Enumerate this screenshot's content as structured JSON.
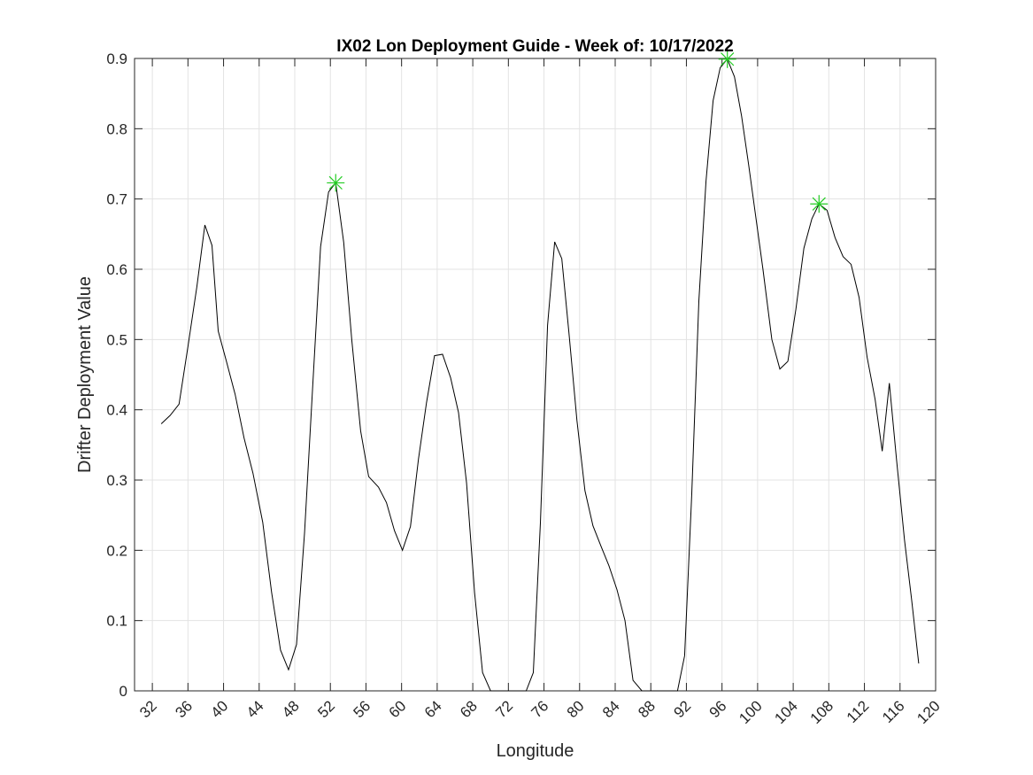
{
  "chart_data": {
    "type": "line",
    "title": "IX02 Lon Deployment Guide - Week of: 10/17/2022",
    "xlabel": "Longitude",
    "ylabel": "Drifter Deployment Value",
    "xlim": [
      30,
      120
    ],
    "ylim": [
      0,
      0.9
    ],
    "grid": true,
    "xticks": [
      32,
      36,
      40,
      44,
      48,
      52,
      56,
      60,
      64,
      68,
      72,
      76,
      80,
      84,
      88,
      92,
      96,
      100,
      104,
      108,
      112,
      116,
      120
    ],
    "yticks": [
      "0",
      "0.1",
      "0.2",
      "0.3",
      "0.4",
      "0.5",
      "0.6",
      "0.7",
      "0.8",
      "0.9"
    ],
    "series": [
      {
        "color": "#000000",
        "points": [
          [
            33.0,
            0.38
          ],
          [
            34.0,
            0.392
          ],
          [
            35.0,
            0.408
          ],
          [
            36.0,
            0.49
          ],
          [
            37.0,
            0.575
          ],
          [
            37.9,
            0.663
          ],
          [
            38.7,
            0.634
          ],
          [
            39.4,
            0.512
          ],
          [
            40.3,
            0.47
          ],
          [
            41.3,
            0.422
          ],
          [
            42.3,
            0.36
          ],
          [
            43.3,
            0.31
          ],
          [
            44.4,
            0.24
          ],
          [
            45.4,
            0.14
          ],
          [
            46.4,
            0.058
          ],
          [
            47.3,
            0.03
          ],
          [
            48.2,
            0.066
          ],
          [
            49.1,
            0.225
          ],
          [
            50.0,
            0.43
          ],
          [
            50.9,
            0.632
          ],
          [
            51.8,
            0.71
          ],
          [
            52.6,
            0.723
          ],
          [
            53.5,
            0.638
          ],
          [
            54.4,
            0.5
          ],
          [
            55.4,
            0.37
          ],
          [
            56.3,
            0.305
          ],
          [
            57.4,
            0.29
          ],
          [
            58.3,
            0.268
          ],
          [
            59.2,
            0.228
          ],
          [
            60.1,
            0.2
          ],
          [
            61.0,
            0.234
          ],
          [
            61.9,
            0.33
          ],
          [
            62.8,
            0.41
          ],
          [
            63.7,
            0.477
          ],
          [
            64.6,
            0.479
          ],
          [
            65.5,
            0.446
          ],
          [
            66.4,
            0.396
          ],
          [
            67.3,
            0.296
          ],
          [
            68.2,
            0.14
          ],
          [
            69.1,
            0.026
          ],
          [
            70.0,
            0.0
          ],
          [
            71.0,
            0.0
          ],
          [
            72.0,
            0.0
          ],
          [
            73.0,
            0.0
          ],
          [
            74.0,
            0.0
          ],
          [
            74.8,
            0.026
          ],
          [
            75.6,
            0.24
          ],
          [
            76.4,
            0.52
          ],
          [
            77.2,
            0.639
          ],
          [
            78.0,
            0.615
          ],
          [
            78.8,
            0.51
          ],
          [
            79.7,
            0.385
          ],
          [
            80.6,
            0.285
          ],
          [
            81.5,
            0.235
          ],
          [
            82.4,
            0.206
          ],
          [
            83.3,
            0.178
          ],
          [
            84.2,
            0.144
          ],
          [
            85.1,
            0.1
          ],
          [
            86.0,
            0.015
          ],
          [
            87.0,
            0.0
          ],
          [
            88.0,
            0.0
          ],
          [
            89.0,
            0.0
          ],
          [
            90.0,
            0.0
          ],
          [
            91.0,
            0.0
          ],
          [
            91.8,
            0.05
          ],
          [
            92.6,
            0.28
          ],
          [
            93.4,
            0.555
          ],
          [
            94.2,
            0.725
          ],
          [
            95.0,
            0.84
          ],
          [
            95.8,
            0.887
          ],
          [
            96.6,
            0.899
          ],
          [
            97.4,
            0.874
          ],
          [
            98.2,
            0.818
          ],
          [
            99.0,
            0.748
          ],
          [
            99.8,
            0.674
          ],
          [
            100.6,
            0.6
          ],
          [
            101.6,
            0.5
          ],
          [
            102.5,
            0.458
          ],
          [
            103.4,
            0.469
          ],
          [
            104.3,
            0.543
          ],
          [
            105.2,
            0.63
          ],
          [
            106.1,
            0.672
          ],
          [
            106.9,
            0.693
          ],
          [
            107.8,
            0.684
          ],
          [
            108.7,
            0.645
          ],
          [
            109.6,
            0.618
          ],
          [
            110.5,
            0.607
          ],
          [
            111.4,
            0.56
          ],
          [
            112.3,
            0.475
          ],
          [
            113.2,
            0.415
          ],
          [
            114.0,
            0.341
          ],
          [
            114.8,
            0.438
          ],
          [
            115.6,
            0.33
          ],
          [
            116.5,
            0.215
          ],
          [
            117.3,
            0.13
          ],
          [
            118.1,
            0.039
          ]
        ]
      }
    ],
    "markers": [
      {
        "x": 52.6,
        "y": 0.723,
        "color": "#22cc22",
        "symbol": "asterisk"
      },
      {
        "x": 96.6,
        "y": 0.899,
        "color": "#22cc22",
        "symbol": "asterisk"
      },
      {
        "x": 106.9,
        "y": 0.693,
        "color": "#22cc22",
        "symbol": "asterisk"
      }
    ]
  }
}
